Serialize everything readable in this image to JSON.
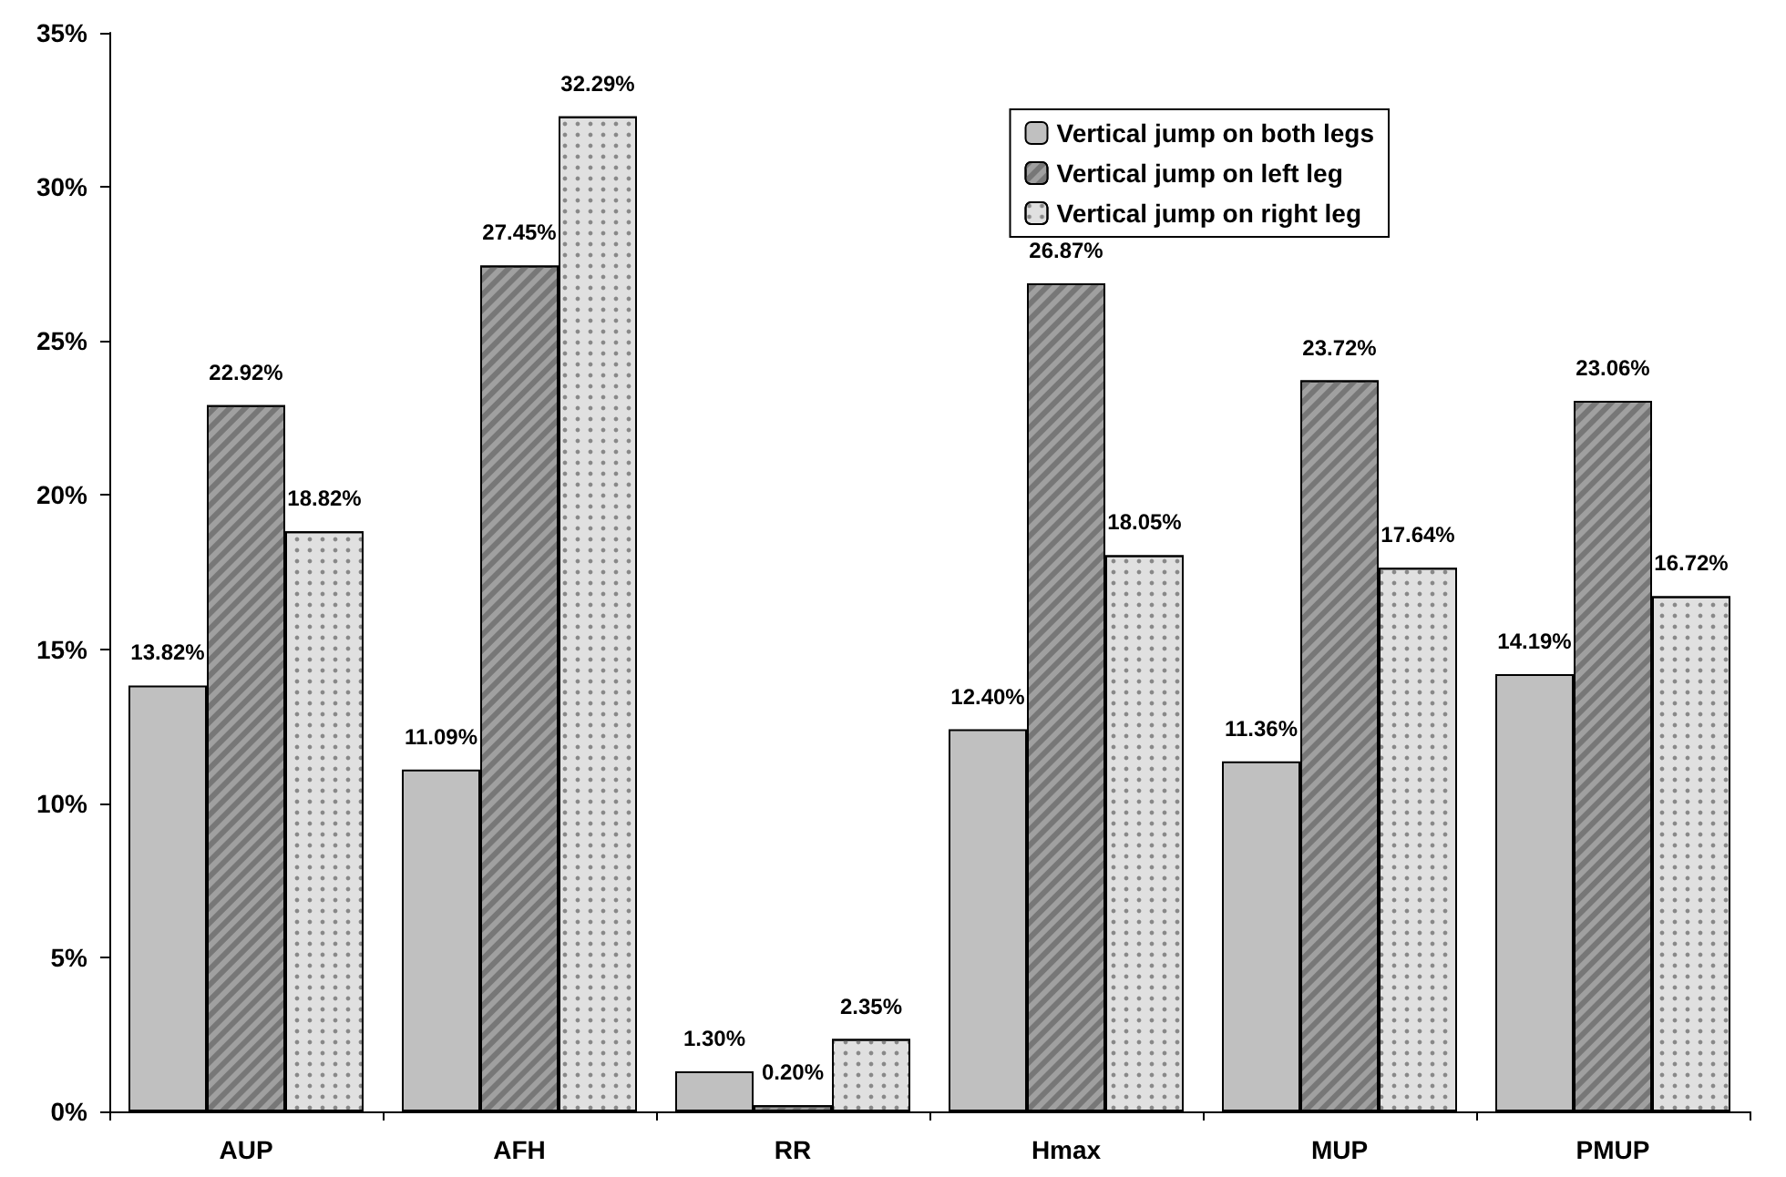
{
  "chart_data": {
    "type": "bar",
    "categories": [
      "AUP",
      "AFH",
      "RR",
      "Hmax",
      "MUP",
      "PMUP"
    ],
    "series": [
      {
        "name": "Vertical jump on both legs",
        "color": "#c0c0c0",
        "values": [
          13.82,
          11.09,
          1.3,
          12.4,
          11.36,
          14.19
        ],
        "value_labels": [
          "13.82%",
          "11.09%",
          "1.30%",
          "12.40%",
          "11.36%",
          "14.19%"
        ]
      },
      {
        "name": "Vertical jump on left leg",
        "color": "#a0a0a0",
        "values": [
          22.92,
          27.45,
          0.2,
          26.87,
          23.72,
          23.06
        ],
        "value_labels": [
          "22.92%",
          "27.45%",
          "0.20%",
          "26.87%",
          "23.72%",
          "23.06%"
        ]
      },
      {
        "name": "Vertical jump on right leg",
        "color": "#e0e0e0",
        "values": [
          18.82,
          32.29,
          2.35,
          18.05,
          17.64,
          16.72
        ],
        "value_labels": [
          "18.82%",
          "32.29%",
          "2.35%",
          "18.05%",
          "17.64%",
          "16.72%"
        ]
      }
    ],
    "ylim": [
      0,
      35
    ],
    "yticks": [
      {
        "value": 0,
        "label": "0%"
      },
      {
        "value": 5,
        "label": "5%"
      },
      {
        "value": 10,
        "label": "10%"
      },
      {
        "value": 15,
        "label": "15%"
      },
      {
        "value": 20,
        "label": "20%"
      },
      {
        "value": 25,
        "label": "25%"
      },
      {
        "value": 30,
        "label": "30%"
      },
      {
        "value": 35,
        "label": "35%"
      }
    ],
    "grid": false,
    "legend": "top right"
  }
}
